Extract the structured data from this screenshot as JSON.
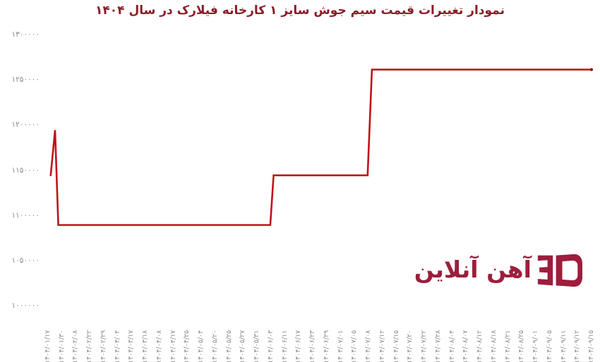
{
  "page": {
    "background": "#ffffff"
  },
  "chart_data": {
    "type": "line",
    "title": "نمودار تغییرات قیمت سیم جوش سایز ۱ کارخانه فیلارک در سال ۱۴۰۴",
    "title_color": "#8a1c26",
    "line_color": "#c1121a",
    "line_end_marker_color": "#8f1016",
    "tick_label_color": "#8c8c8c",
    "grid": false,
    "legend": false,
    "x_labels_rotation_deg": -90,
    "ylim": [
      1000000,
      1300000
    ],
    "ytick_values": [
      1300000,
      1250000,
      1200000,
      1150000,
      1100000,
      1050000,
      1000000
    ],
    "ytick_labels": [
      "۱۳۰۰۰۰۰",
      "۱۲۵۰۰۰۰",
      "۱۲۰۰۰۰۰",
      "۱۱۵۰۰۰۰",
      "۱۱۰۰۰۰۰",
      "۱۰۵۰۰۰۰",
      "۱۰۰۰۰۰۰"
    ],
    "categories": [
      "۱۴۰۴/۰۱/۱۷",
      "۱۴۰۴/۰۱/۳۰",
      "۱۴۰۴/۰۲/۰۸",
      "۱۴۰۴/۰۲/۲۲",
      "۱۴۰۴/۰۲/۲۹",
      "۱۴۰۴/۰۳/۰۴",
      "۱۴۰۴/۰۳/۱۷",
      "۱۴۰۴/۰۳/۱۸",
      "۱۴۰۴/۰۴/۰۸",
      "۱۴۰۴/۰۴/۱۷",
      "۱۴۰۴/۰۴/۲۵",
      "۱۴۰۴/۰۵/۰۴",
      "۱۴۰۴/۰۵/۲۰",
      "۱۴۰۴/۰۵/۲۵",
      "۱۴۰۴/۰۵/۲۷",
      "۱۴۰۴/۰۵/۳۱",
      "۱۴۰۴/۰۶/۰۳",
      "۱۴۰۴/۰۶/۱۱",
      "۱۴۰۴/۰۶/۱۷",
      "۱۴۰۴/۰۶/۲۳",
      "۱۴۰۴/۰۶/۲۹",
      "۱۴۰۴/۰۷/۰۱",
      "۱۴۰۴/۰۷/۰۵",
      "۱۴۰۴/۰۷/۰۸",
      "۱۴۰۴/۰۷/۱۲",
      "۱۴۰۴/۰۷/۱۵",
      "۱۴۰۴/۰۷/۲۰",
      "۱۴۰۴/۰۷/۲۲",
      "۱۴۰۴/۰۷/۲۸",
      "۱۴۰۴/۰۸/۰۴",
      "۱۴۰۴/۰۸/۰۷",
      "۱۴۰۴/۰۸/۱۲",
      "۱۴۰۴/۰۸/۱۸",
      "۱۴۰۴/۰۸/۲۱",
      "۱۴۰۴/۰۸/۲۵",
      "۱۴۰۴/۰۹/۰۱",
      "۱۴۰۴/۰۹/۰۵",
      "۱۴۰۴/۰۹/۱۱",
      "۱۴۰۴/۰۹/۱۲",
      "۱۴۰۴/۰۹/۱۵"
    ],
    "values": [
      1145000,
      1090000,
      1090000,
      1090000,
      1090000,
      1090000,
      1090000,
      1090000,
      1090000,
      1090000,
      1090000,
      1090000,
      1090000,
      1090000,
      1090000,
      1090000,
      1145000,
      1145000,
      1145000,
      1145000,
      1145000,
      1145000,
      1145000,
      1262000,
      1262000,
      1262000,
      1262000,
      1262000,
      1262000,
      1262000,
      1262000,
      1262000,
      1262000,
      1262000,
      1262000,
      1262000,
      1262000,
      1262000,
      1262000,
      1262000
    ],
    "spike_annotation": {
      "description": "brief unlabeled spike right after first date",
      "after_category": "۱۴۰۴/۰۱/۱۷",
      "peak_value": 1195000
    },
    "line_points": [
      [
        0.005,
        1145000
      ],
      [
        0.013,
        1195000
      ],
      [
        0.019,
        1090000
      ],
      [
        0.409,
        1090000
      ],
      [
        0.415,
        1145000
      ],
      [
        0.588,
        1145000
      ],
      [
        0.596,
        1262000
      ],
      [
        1.0,
        1262000
      ]
    ]
  },
  "logo": {
    "text": "آهن آنلاین",
    "color": "#9d1d3d",
    "mark": "ahan-online-3d-mark"
  }
}
